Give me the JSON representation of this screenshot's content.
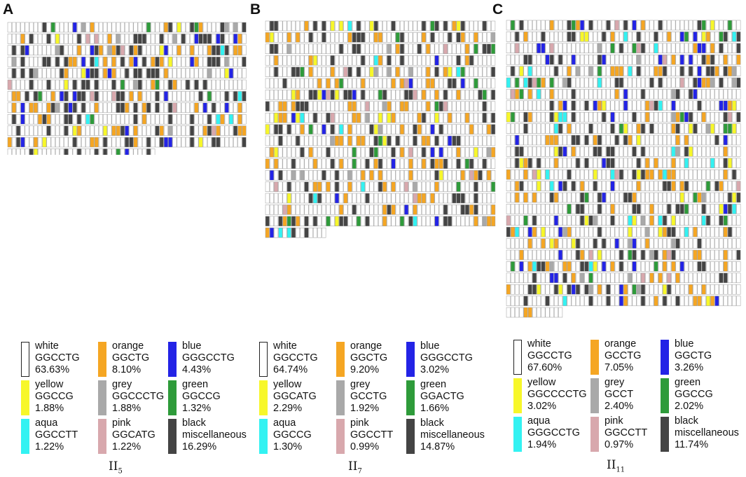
{
  "colors": {
    "white": "#ffffff",
    "orange": "#f5a623",
    "blue": "#2323e6",
    "yellow": "#f7f72a",
    "grey": "#a9a9a9",
    "green": "#2e9b3a",
    "aqua": "#33f2f2",
    "pink": "#d8a8ad",
    "black": "#444444"
  },
  "panels": [
    {
      "letter": "A",
      "subtitle_main": "II",
      "subtitle_sub": "5",
      "rows": 12,
      "last_row_fraction": 0.61,
      "mix": {
        "white": 63.63,
        "orange": 8.1,
        "blue": 4.43,
        "yellow": 1.88,
        "grey": 1.88,
        "green": 1.32,
        "aqua": 1.22,
        "pink": 1.22,
        "black": 16.29
      },
      "legend": [
        {
          "color": "white",
          "name": "white",
          "motif": "GGCCTG",
          "percent": "63.63%"
        },
        {
          "color": "orange",
          "name": "orange",
          "motif": "GGCTG",
          "percent": "8.10%"
        },
        {
          "color": "blue",
          "name": "blue",
          "motif": "GGGCCTG",
          "percent": "4.43%"
        },
        {
          "color": "yellow",
          "name": "yellow",
          "motif": "GGCCG",
          "percent": "1.88%"
        },
        {
          "color": "grey",
          "name": "grey",
          "motif": "GGCCCTG",
          "percent": "1.88%"
        },
        {
          "color": "green",
          "name": "green",
          "motif": "GGCCG",
          "percent": "1.32%"
        },
        {
          "color": "aqua",
          "name": "aqua",
          "motif": "GGCCTT",
          "percent": "1.22%"
        },
        {
          "color": "pink",
          "name": "pink",
          "motif": "GGCATG",
          "percent": "1.22%"
        },
        {
          "color": "black",
          "name": "black",
          "motif": "miscellaneous",
          "percent": "16.29%"
        }
      ]
    },
    {
      "letter": "B",
      "subtitle_main": "II",
      "subtitle_sub": "7",
      "rows": 19,
      "last_row_fraction": 0.26,
      "mix": {
        "white": 64.74,
        "orange": 9.2,
        "blue": 3.02,
        "yellow": 2.29,
        "grey": 1.92,
        "green": 1.66,
        "aqua": 1.3,
        "pink": 0.99,
        "black": 14.87
      },
      "legend": [
        {
          "color": "white",
          "name": "white",
          "motif": "GGCCTG",
          "percent": "64.74%"
        },
        {
          "color": "orange",
          "name": "orange",
          "motif": "GGCTG",
          "percent": "9.20%"
        },
        {
          "color": "blue",
          "name": "blue",
          "motif": "GGGCCTG",
          "percent": "3.02%"
        },
        {
          "color": "yellow",
          "name": "yellow",
          "motif": "GGCATG",
          "percent": "2.29%"
        },
        {
          "color": "grey",
          "name": "grey",
          "motif": "GCCTG",
          "percent": "1.92%"
        },
        {
          "color": "green",
          "name": "green",
          "motif": "GGACTG",
          "percent": "1.66%"
        },
        {
          "color": "aqua",
          "name": "aqua",
          "motif": "GGCCG",
          "percent": "1.30%"
        },
        {
          "color": "pink",
          "name": "pink",
          "motif": "GGCCTT",
          "percent": "0.99%"
        },
        {
          "color": "black",
          "name": "black",
          "motif": "miscellaneous",
          "percent": "14.87%"
        }
      ]
    },
    {
      "letter": "C",
      "subtitle_main": "II",
      "subtitle_sub": "11",
      "rows": 26,
      "last_row_fraction": 0.24,
      "mix": {
        "white": 67.6,
        "orange": 7.05,
        "blue": 3.26,
        "yellow": 3.02,
        "grey": 2.4,
        "green": 2.02,
        "aqua": 1.94,
        "pink": 0.97,
        "black": 11.74
      },
      "legend": [
        {
          "color": "white",
          "name": "white",
          "motif": "GGCCTG",
          "percent": "67.60%"
        },
        {
          "color": "orange",
          "name": "orange",
          "motif": "GCCTG",
          "percent": "7.05%"
        },
        {
          "color": "blue",
          "name": "blue",
          "motif": "GGCTG",
          "percent": "3.26%"
        },
        {
          "color": "yellow",
          "name": "yellow",
          "motif": "GGCCCCTG",
          "percent": "3.02%"
        },
        {
          "color": "grey",
          "name": "grey",
          "motif": "GCCT",
          "percent": "2.40%"
        },
        {
          "color": "green",
          "name": "green",
          "motif": "GGCCG",
          "percent": "2.02%"
        },
        {
          "color": "aqua",
          "name": "aqua",
          "motif": "GGGCCTG",
          "percent": "1.94%"
        },
        {
          "color": "pink",
          "name": "pink",
          "motif": "GGCCTT",
          "percent": "0.97%"
        },
        {
          "color": "black",
          "name": "black",
          "motif": "miscellaneous",
          "percent": "11.74%"
        }
      ]
    }
  ]
}
